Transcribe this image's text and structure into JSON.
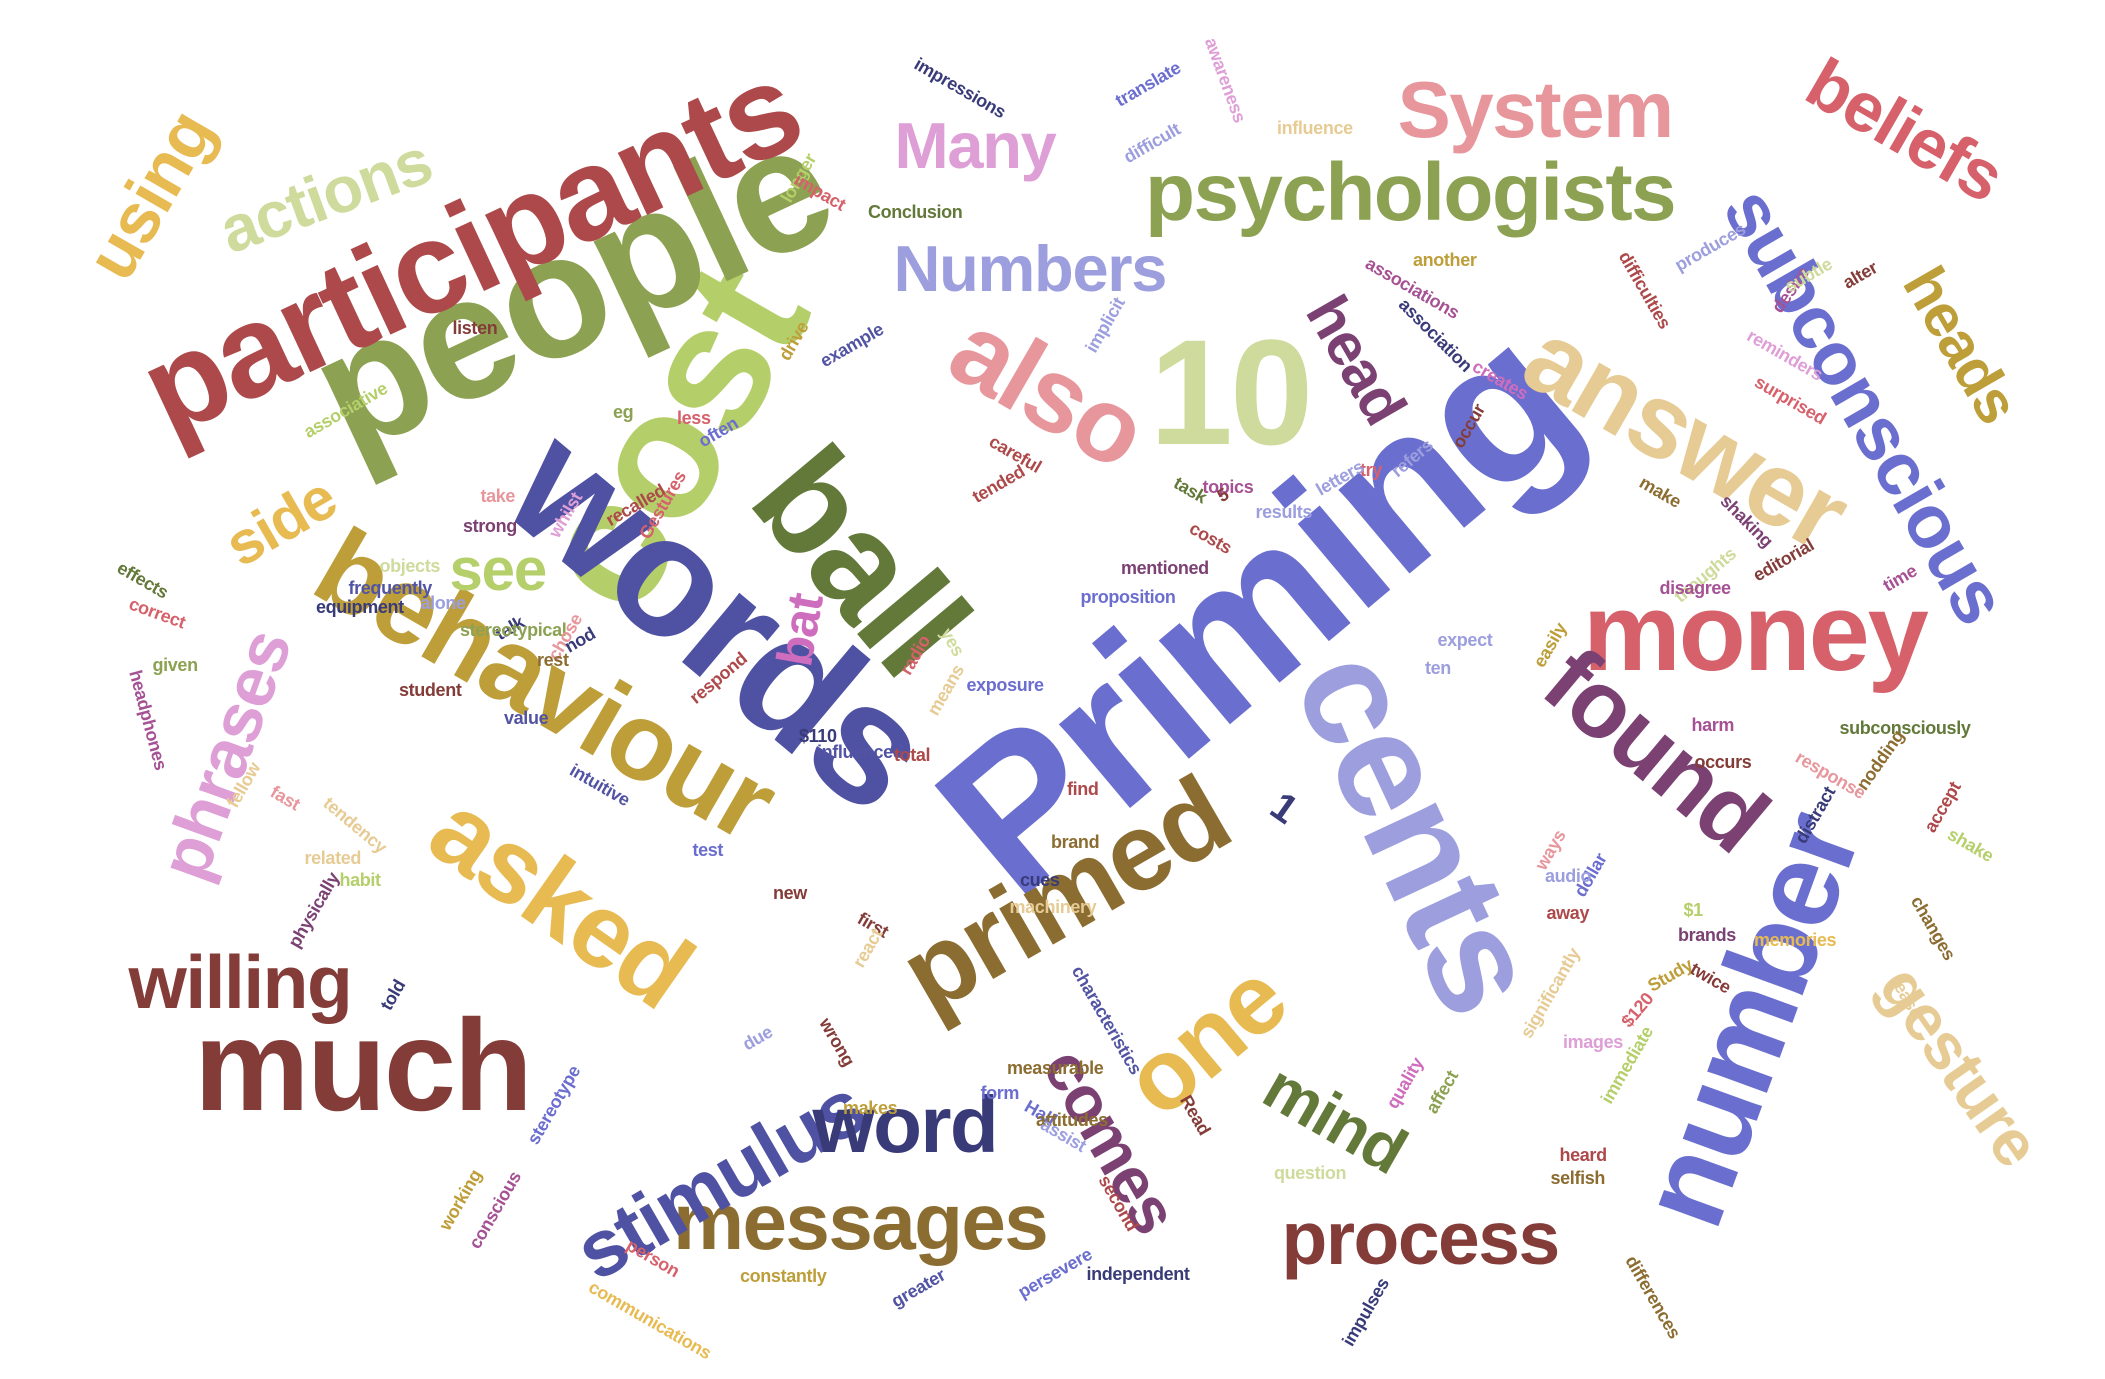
{
  "words": [
    {
      "t": "Priming",
      "c": "#6a6fcf"
    },
    {
      "t": "cost",
      "c": "#b4cf6a"
    },
    {
      "t": "people",
      "c": "#8ca252"
    },
    {
      "t": "participants",
      "c": "#ad494a"
    },
    {
      "t": "words",
      "c": "#4f52a3"
    },
    {
      "t": "behaviour",
      "c": "#bd9e39"
    },
    {
      "t": "much",
      "c": "#843c39"
    },
    {
      "t": "cents",
      "c": "#9c9ede"
    },
    {
      "t": "ball",
      "c": "#637939"
    },
    {
      "t": "money",
      "c": "#d6616b"
    },
    {
      "t": "number",
      "c": "#6a6fcf"
    },
    {
      "t": "primed",
      "c": "#8c6d31"
    },
    {
      "t": "asked",
      "c": "#e7ba52"
    },
    {
      "t": "found",
      "c": "#7b4173"
    },
    {
      "t": "answer",
      "c": "#e7cb94"
    },
    {
      "t": "also",
      "c": "#e7969c"
    },
    {
      "t": "10",
      "c": "#cedb9c"
    },
    {
      "t": "psychologists",
      "c": "#8ca252"
    },
    {
      "t": "System",
      "c": "#e7969c"
    },
    {
      "t": "subconscious",
      "c": "#6a6fcf"
    },
    {
      "t": "messages",
      "c": "#8c6d31"
    },
    {
      "t": "stimulus",
      "c": "#4f52a3"
    },
    {
      "t": "process",
      "c": "#843c39"
    },
    {
      "t": "willing",
      "c": "#843c39"
    },
    {
      "t": "one",
      "c": "#e7ba52"
    },
    {
      "t": "word",
      "c": "#393b79"
    },
    {
      "t": "comes",
      "c": "#7b4173"
    },
    {
      "t": "mind",
      "c": "#637939"
    },
    {
      "t": "gesture",
      "c": "#e7cb94"
    },
    {
      "t": "beliefs",
      "c": "#d6616b"
    },
    {
      "t": "heads",
      "c": "#bd9e39"
    },
    {
      "t": "head",
      "c": "#7b4173"
    },
    {
      "t": "phrases",
      "c": "#de9ed6"
    },
    {
      "t": "Numbers",
      "c": "#9c9ede"
    },
    {
      "t": "Many",
      "c": "#de9ed6"
    },
    {
      "t": "actions",
      "c": "#cedb9c"
    },
    {
      "t": "using",
      "c": "#e7ba52"
    },
    {
      "t": "side",
      "c": "#e7ba52"
    },
    {
      "t": "see",
      "c": "#b5cf6b"
    },
    {
      "t": "bat",
      "c": "#ce6dbd"
    },
    {
      "t": "1",
      "c": "#393b79"
    },
    {
      "t": "impressions",
      "c": "#393b79"
    },
    {
      "t": "translate",
      "c": "#6b6ecf"
    },
    {
      "t": "awareness",
      "c": "#de9ed6"
    },
    {
      "t": "difficult",
      "c": "#9c9ede"
    },
    {
      "t": "influence",
      "c": "#e7cb94"
    },
    {
      "t": "longer",
      "c": "#b5cf6b"
    },
    {
      "t": "impact",
      "c": "#d6616b"
    },
    {
      "t": "Conclusion",
      "c": "#637939"
    },
    {
      "t": "associations",
      "c": "#a55194"
    },
    {
      "t": "another",
      "c": "#bd9e39"
    },
    {
      "t": "difficulties",
      "c": "#ad494a"
    },
    {
      "t": "produces",
      "c": "#9c9ede"
    },
    {
      "t": "desire",
      "c": "#a55194"
    },
    {
      "t": "subtle",
      "c": "#cedb9c"
    },
    {
      "t": "alter",
      "c": "#843c39"
    },
    {
      "t": "association",
      "c": "#393b79"
    },
    {
      "t": "listen",
      "c": "#843c39"
    },
    {
      "t": "drive",
      "c": "#bd9e39"
    },
    {
      "t": "example",
      "c": "#5254a3"
    },
    {
      "t": "implicit",
      "c": "#9c9ede"
    },
    {
      "t": "reminders",
      "c": "#de9ed6"
    },
    {
      "t": "surprised",
      "c": "#d6616b"
    },
    {
      "t": "creates",
      "c": "#ce6dbd"
    },
    {
      "t": "occur",
      "c": "#843c39"
    },
    {
      "t": "associative",
      "c": "#b5cf6b"
    },
    {
      "t": "eg",
      "c": "#8ca252"
    },
    {
      "t": "less",
      "c": "#d6616b"
    },
    {
      "t": "often",
      "c": "#6b6ecf"
    },
    {
      "t": "careful",
      "c": "#ad494a"
    },
    {
      "t": "refers",
      "c": "#9c9ede"
    },
    {
      "t": "try",
      "c": "#d6616b"
    },
    {
      "t": "letters",
      "c": "#9c9ede"
    },
    {
      "t": "make",
      "c": "#8c6d31"
    },
    {
      "t": "shaking",
      "c": "#7b4173"
    },
    {
      "t": "tended",
      "c": "#ad494a"
    },
    {
      "t": "task",
      "c": "#637939"
    },
    {
      "t": "topics",
      "c": "#a55194"
    },
    {
      "t": "5",
      "c": "#843c39"
    },
    {
      "t": "results",
      "c": "#9c9ede"
    },
    {
      "t": "take",
      "c": "#e7969c"
    },
    {
      "t": "whilst",
      "c": "#de9ed6"
    },
    {
      "t": "recalled",
      "c": "#ad494a"
    },
    {
      "t": "Gestures",
      "c": "#d6616b"
    },
    {
      "t": "costs",
      "c": "#ad494a"
    },
    {
      "t": "mentioned",
      "c": "#7b4173"
    },
    {
      "t": "thoughts",
      "c": "#cedb9c"
    },
    {
      "t": "editorial",
      "c": "#843c39"
    },
    {
      "t": "time",
      "c": "#a55194"
    },
    {
      "t": "disagree",
      "c": "#a55194"
    },
    {
      "t": "strong",
      "c": "#7b4173"
    },
    {
      "t": "objects",
      "c": "#cedb9c"
    },
    {
      "t": "effects",
      "c": "#637939"
    },
    {
      "t": "frequently",
      "c": "#5254a3"
    },
    {
      "t": "proposition",
      "c": "#6b6ecf"
    },
    {
      "t": "correct",
      "c": "#d6616b"
    },
    {
      "t": "equipment",
      "c": "#393b79"
    },
    {
      "t": "alone",
      "c": "#9c9ede"
    },
    {
      "t": "talk",
      "c": "#393b79"
    },
    {
      "t": "stereotypical",
      "c": "#8ca252"
    },
    {
      "t": "chose",
      "c": "#e7969c"
    },
    {
      "t": "rest",
      "c": "#8c6d31"
    },
    {
      "t": "nod",
      "c": "#393b79"
    },
    {
      "t": "yes",
      "c": "#cedb9c"
    },
    {
      "t": "expect",
      "c": "#9c9ede"
    },
    {
      "t": "easily",
      "c": "#bd9e39"
    },
    {
      "t": "ten",
      "c": "#9c9ede"
    },
    {
      "t": "given",
      "c": "#8ca252"
    },
    {
      "t": "student",
      "c": "#843c39"
    },
    {
      "t": "headphones",
      "c": "#a55194"
    },
    {
      "t": "respond",
      "c": "#ad494a"
    },
    {
      "t": "radio",
      "c": "#d6616b"
    },
    {
      "t": "exposure",
      "c": "#6b6ecf"
    },
    {
      "t": "means",
      "c": "#e7cb94"
    },
    {
      "t": "value",
      "c": "#5254a3"
    },
    {
      "t": "$110",
      "c": "#393b79"
    },
    {
      "t": "harm",
      "c": "#a55194"
    },
    {
      "t": "subconsciously",
      "c": "#637939"
    },
    {
      "t": "occurs",
      "c": "#843c39"
    },
    {
      "t": "response",
      "c": "#e7969c"
    },
    {
      "t": "nodding",
      "c": "#8c6d31"
    },
    {
      "t": "accept",
      "c": "#ad494a"
    },
    {
      "t": "fellow",
      "c": "#e7cb94"
    },
    {
      "t": "intuitive",
      "c": "#5254a3"
    },
    {
      "t": "influenced",
      "c": "#5254a3"
    },
    {
      "t": "total",
      "c": "#ad494a"
    },
    {
      "t": "find",
      "c": "#ad494a"
    },
    {
      "t": "fast",
      "c": "#e7969c"
    },
    {
      "t": "tendency",
      "c": "#e7cb94"
    },
    {
      "t": "related",
      "c": "#e7cb94"
    },
    {
      "t": "test",
      "c": "#6b6ecf"
    },
    {
      "t": "brand",
      "c": "#8c6d31"
    },
    {
      "t": "ways",
      "c": "#e7969c"
    },
    {
      "t": "distract",
      "c": "#393b79"
    },
    {
      "t": "shake",
      "c": "#b5cf6b"
    },
    {
      "t": "physically",
      "c": "#7b4173"
    },
    {
      "t": "habit",
      "c": "#b5cf6b"
    },
    {
      "t": "new",
      "c": "#843c39"
    },
    {
      "t": "cues",
      "c": "#393b79"
    },
    {
      "t": "dollar",
      "c": "#6b6ecf"
    },
    {
      "t": "audio",
      "c": "#9c9ede"
    },
    {
      "t": "away",
      "c": "#ad494a"
    },
    {
      "t": "$1",
      "c": "#b5cf6b"
    },
    {
      "t": "changes",
      "c": "#8c6d31"
    },
    {
      "t": "machinery",
      "c": "#e7cb94"
    },
    {
      "t": "first",
      "c": "#843c39"
    },
    {
      "t": "brands",
      "c": "#7b4173"
    },
    {
      "t": "memories",
      "c": "#e7ba52"
    },
    {
      "t": "told",
      "c": "#393b79"
    },
    {
      "t": "react",
      "c": "#e7cb94"
    },
    {
      "t": "Study",
      "c": "#bd9e39"
    },
    {
      "t": "twice",
      "c": "#843c39"
    },
    {
      "t": "ease",
      "c": "#e7cb94"
    },
    {
      "t": "significantly",
      "c": "#e7cb94"
    },
    {
      "t": "$120",
      "c": "#d6616b"
    },
    {
      "t": "due",
      "c": "#9c9ede"
    },
    {
      "t": "wrong",
      "c": "#843c39"
    },
    {
      "t": "images",
      "c": "#de9ed6"
    },
    {
      "t": "immediate",
      "c": "#b5cf6b"
    },
    {
      "t": "characteristics",
      "c": "#5254a3"
    },
    {
      "t": "measurable",
      "c": "#8c6d31"
    },
    {
      "t": "form",
      "c": "#6b6ecf"
    },
    {
      "t": "quality",
      "c": "#ce6dbd"
    },
    {
      "t": "affect",
      "c": "#8ca252"
    },
    {
      "t": "stereotype",
      "c": "#6b6ecf"
    },
    {
      "t": "makes",
      "c": "#bd9e39"
    },
    {
      "t": "Half",
      "c": "#6b6ecf"
    },
    {
      "t": "attitudes",
      "c": "#8c6d31"
    },
    {
      "t": "assist",
      "c": "#9c9ede"
    },
    {
      "t": "Read",
      "c": "#843c39"
    },
    {
      "t": "heard",
      "c": "#ad494a"
    },
    {
      "t": "question",
      "c": "#cedb9c"
    },
    {
      "t": "selfish",
      "c": "#8c6d31"
    },
    {
      "t": "working",
      "c": "#bd9e39"
    },
    {
      "t": "conscious",
      "c": "#a55194"
    },
    {
      "t": "second",
      "c": "#ad494a"
    },
    {
      "t": "person",
      "c": "#d6616b"
    },
    {
      "t": "constantly",
      "c": "#bd9e39"
    },
    {
      "t": "persevere",
      "c": "#6b6ecf"
    },
    {
      "t": "independent",
      "c": "#393b79"
    },
    {
      "t": "greater",
      "c": "#5254a3"
    },
    {
      "t": "impulses",
      "c": "#393b79"
    },
    {
      "t": "differences",
      "c": "#8c6d31"
    },
    {
      "t": "communications",
      "c": "#e7ba52"
    }
  ]
}
